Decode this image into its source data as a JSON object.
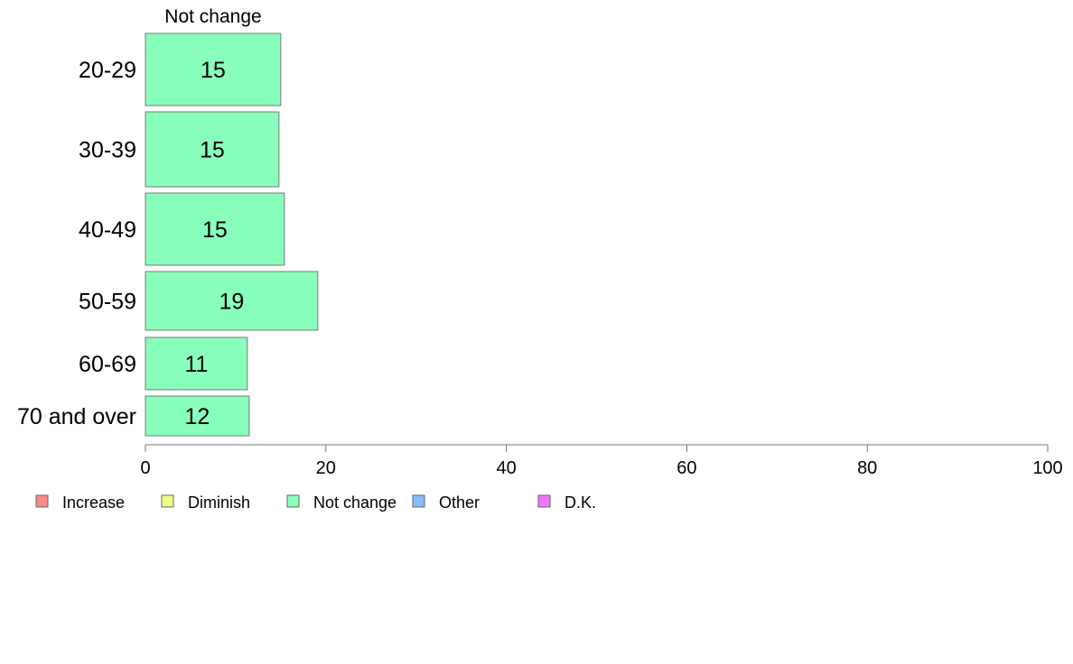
{
  "chart_data": {
    "type": "bar",
    "orientation": "horizontal",
    "stacked": true,
    "title": "",
    "xlabel": "",
    "ylabel": "",
    "series_title": "Not change",
    "categories": [
      "20-29",
      "30-39",
      "40-49",
      "50-59",
      "60-69",
      "70 and over"
    ],
    "series": [
      {
        "name": "Not change",
        "color": "#88ffbb",
        "values": [
          15,
          15,
          15,
          19,
          11,
          12
        ],
        "exact_values": [
          15.0,
          14.8,
          15.4,
          19.1,
          11.3,
          11.5
        ]
      }
    ],
    "xlim": [
      0,
      100
    ],
    "xticks": [
      0,
      20,
      40,
      60,
      80,
      100
    ],
    "grid": false,
    "legend_position": "bottom-left",
    "legend": [
      {
        "label": "Increase",
        "color": "#f88a84"
      },
      {
        "label": "Diminish",
        "color": "#eeff88"
      },
      {
        "label": "Not change",
        "color": "#88ffbb"
      },
      {
        "label": "Other",
        "color": "#88bbff"
      },
      {
        "label": "D.K.",
        "color": "#ee77ff"
      }
    ]
  }
}
